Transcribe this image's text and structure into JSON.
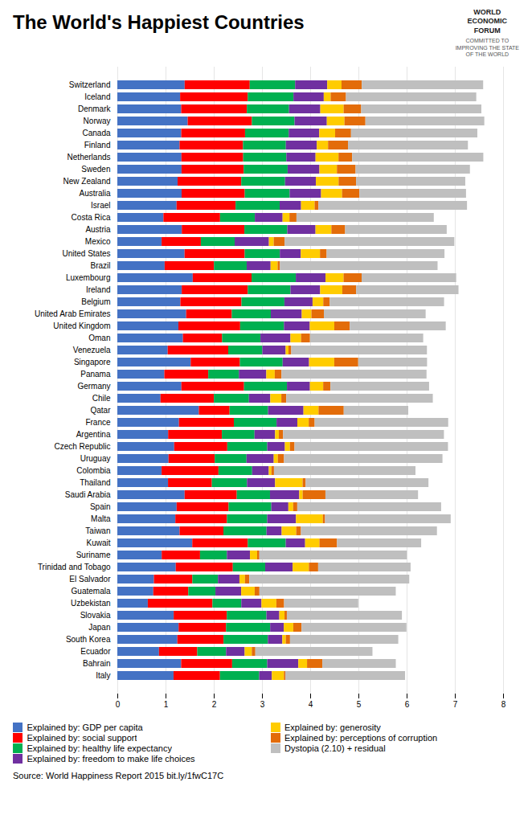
{
  "chart_data": {
    "type": "bar",
    "orientation": "horizontal",
    "stacked": true,
    "title": "The World's Happiest Countries",
    "caption": "Source:  World Happiness Report 2015 bit.ly/1fwC17C",
    "annotations": [
      "WORLD\nECONOMIC\nFORUM",
      "COMMITTED TO\nIMPROVING THE STATE\nOF THE WORLD"
    ],
    "categories": [
      "Switzerland",
      "Iceland",
      "Denmark",
      "Norway",
      "Canada",
      "Finland",
      "Netherlands",
      "Sweden",
      "New Zealand",
      "Australia",
      "Israel",
      "Costa Rica",
      "Austria",
      "Mexico",
      "United States",
      "Brazil",
      "Luxembourg",
      "Ireland",
      "Belgium",
      "United Arab Emirates",
      "United Kingdom",
      "Oman",
      "Venezuela",
      "Singapore",
      "Panama",
      "Germany",
      "Chile",
      "Qatar",
      "France",
      "Argentina",
      "Czech Republic",
      "Uruguay",
      "Colombia",
      "Thailand",
      "Saudi Arabia",
      "Spain",
      "Malta",
      "Taiwan",
      "Kuwait",
      "Suriname",
      "Trinidad and Tobago",
      "El Salvador",
      "Guatemala",
      "Uzbekistan",
      "Slovakia",
      "Japan",
      "South Korea",
      "Ecuador",
      "Bahrain",
      "Italy"
    ],
    "series": [
      {
        "name": "Explained by: GDP per capita",
        "color": "#4472C4",
        "values": [
          1.39651,
          1.30232,
          1.32548,
          1.459,
          1.32629,
          1.29025,
          1.32944,
          1.33171,
          1.25018,
          1.33358,
          1.22857,
          0.95578,
          1.33723,
          0.91854,
          1.39451,
          0.98124,
          1.56391,
          1.33596,
          1.30782,
          1.42727,
          1.26637,
          1.36011,
          1.04424,
          1.52186,
          0.9749,
          1.32792,
          0.89537,
          1.69042,
          1.27778,
          1.05351,
          1.17898,
          1.06166,
          0.91861,
          1.0512,
          1.39541,
          1.23011,
          1.20313,
          1.29098,
          1.55422,
          0.92053,
          1.21183,
          0.75862,
          0.74553,
          0.63216,
          1.16891,
          1.27074,
          1.24461,
          0.86402,
          1.32376,
          1.16593
        ]
      },
      {
        "name": "Explained by: social support",
        "color": "#FF0000",
        "values": [
          1.34951,
          1.40223,
          1.36058,
          1.33095,
          1.32261,
          1.31587,
          1.28017,
          1.28907,
          1.31967,
          1.30923,
          1.22393,
          1.17468,
          1.29733,
          0.81372,
          1.24711,
          1.02325,
          1.21963,
          1.36948,
          1.26662,
          0.94676,
          1.28077,
          0.81229,
          1.25596,
          1.02,
          0.91093,
          1.29937,
          1.10715,
          0.6376,
          1.13889,
          1.11477,
          1.10123,
          0.95791,
          1.17898,
          0.90943,
          1.08182,
          1.07758,
          1.07011,
          0.90926,
          1.15137,
          0.79467,
          1.18354,
          0.79733,
          0.72672,
          1.34043,
          1.10107,
          0.9839,
          0.95774,
          0.79379,
          1.05747,
          0.9624
        ]
      },
      {
        "name": "Explained by: healthy life expectancy",
        "color": "#00B050",
        "values": [
          0.94143,
          0.94784,
          0.87464,
          0.88521,
          0.90563,
          0.88911,
          0.89533,
          0.91087,
          0.90837,
          0.93156,
          0.91387,
          0.72125,
          0.89042,
          0.70128,
          0.72822,
          0.67842,
          0.91773,
          0.88521,
          0.89042,
          0.80925,
          0.90837,
          0.79579,
          0.70747,
          0.88688,
          0.63476,
          0.89042,
          0.72671,
          0.79745,
          0.88521,
          0.67707,
          0.82912,
          0.65929,
          0.69804,
          0.72799,
          0.68898,
          0.88521,
          0.83524,
          0.89408,
          0.78723,
          0.55691,
          0.67132,
          0.53124,
          0.5618,
          0.59867,
          0.82241,
          0.91491,
          0.91966,
          0.59691,
          0.7271,
          0.81364
        ]
      },
      {
        "name": "Explained by: freedom to make life choices",
        "color": "#7030A0",
        "values": [
          0.66557,
          0.62877,
          0.64938,
          0.66973,
          0.63297,
          0.64157,
          0.60616,
          0.6598,
          0.63938,
          0.65124,
          0.44395,
          0.57583,
          0.58538,
          0.71005,
          0.4354,
          0.49574,
          0.61583,
          0.61583,
          0.58396,
          0.64157,
          0.53566,
          0.62255,
          0.48297,
          0.54755,
          0.56873,
          0.47675,
          0.44364,
          0.7353,
          0.43153,
          0.42655,
          0.36555,
          0.56483,
          0.34547,
          0.58319,
          0.60626,
          0.35386,
          0.59594,
          0.31379,
          0.40148,
          0.47879,
          0.5692,
          0.44539,
          0.53468,
          0.41843,
          0.26661,
          0.28234,
          0.29981,
          0.38585,
          0.64477,
          0.26236
        ]
      },
      {
        "name": "Explained by: generosity",
        "color": "#FFCC00",
        "values": [
          0.29678,
          0.14301,
          0.48357,
          0.36503,
          0.32957,
          0.23351,
          0.4761,
          0.36262,
          0.47148,
          0.43562,
          0.28105,
          0.14171,
          0.32875,
          0.09974,
          0.39767,
          0.14574,
          0.37449,
          0.45901,
          0.22228,
          0.2006,
          0.50818,
          0.21938,
          0.05939,
          0.52233,
          0.1755,
          0.27489,
          0.22875,
          0.3118,
          0.23618,
          0.07713,
          0.10399,
          0.08484,
          0.05389,
          0.5705,
          0.07112,
          0.09978,
          0.55729,
          0.30175,
          0.29694,
          0.14876,
          0.33672,
          0.11452,
          0.2799,
          0.30826,
          0.10852,
          0.1967,
          0.07176,
          0.14862,
          0.18151,
          0.251
        ]
      },
      {
        "name": "Explained by: perceptions of corruption",
        "color": "#E36C09",
        "values": [
          0.41978,
          0.31767,
          0.3638,
          0.43526,
          0.32957,
          0.41372,
          0.28309,
          0.38737,
          0.36259,
          0.35882,
          0.07785,
          0.14591,
          0.28541,
          0.2254,
          0.13834,
          0.04864,
          0.37545,
          0.28701,
          0.13501,
          0.25779,
          0.32145,
          0.1859,
          0.05736,
          0.49748,
          0.14054,
          0.15139,
          0.10115,
          0.52309,
          0.12285,
          0.08884,
          0.096,
          0.12804,
          0.05368,
          0.06285,
          0.47218,
          0.08488,
          0.04621,
          0.09815,
          0.36435,
          0.04578,
          0.19217,
          0.08938,
          0.09832,
          0.16065,
          0.04828,
          0.17217,
          0.08764,
          0.07299,
          0.31686,
          0.02901
        ]
      },
      {
        "name": "Dystopia (2.10) + residual",
        "color": "#BFBFBF",
        "values": [
          2.51738,
          2.70201,
          2.49204,
          2.46531,
          2.61955,
          2.48694,
          2.72012,
          2.37119,
          2.26425,
          2.21166,
          3.08289,
          2.84793,
          2.10664,
          3.52012,
          2.44361,
          3.26826,
          1.96079,
          2.12281,
          2.3701,
          2.11099,
          1.99003,
          2.3475,
          2.8135,
          1.42727,
          3.00708,
          2.04462,
          3.03989,
          1.33787,
          2.76971,
          3.33541,
          3.18253,
          3.28657,
          2.93472,
          2.54752,
          1.92073,
          2.98368,
          2.60561,
          2.82062,
          1.74573,
          3.05956,
          1.917,
          3.31785,
          2.82745,
          1.53819,
          2.38606,
          2.17473,
          2.24504,
          2.42929,
          1.52401,
          2.48302
        ]
      }
    ],
    "xlim": [
      0,
      8
    ],
    "xticks": [
      0,
      1,
      2,
      3,
      4,
      5,
      6,
      7,
      8
    ],
    "grid": true
  }
}
